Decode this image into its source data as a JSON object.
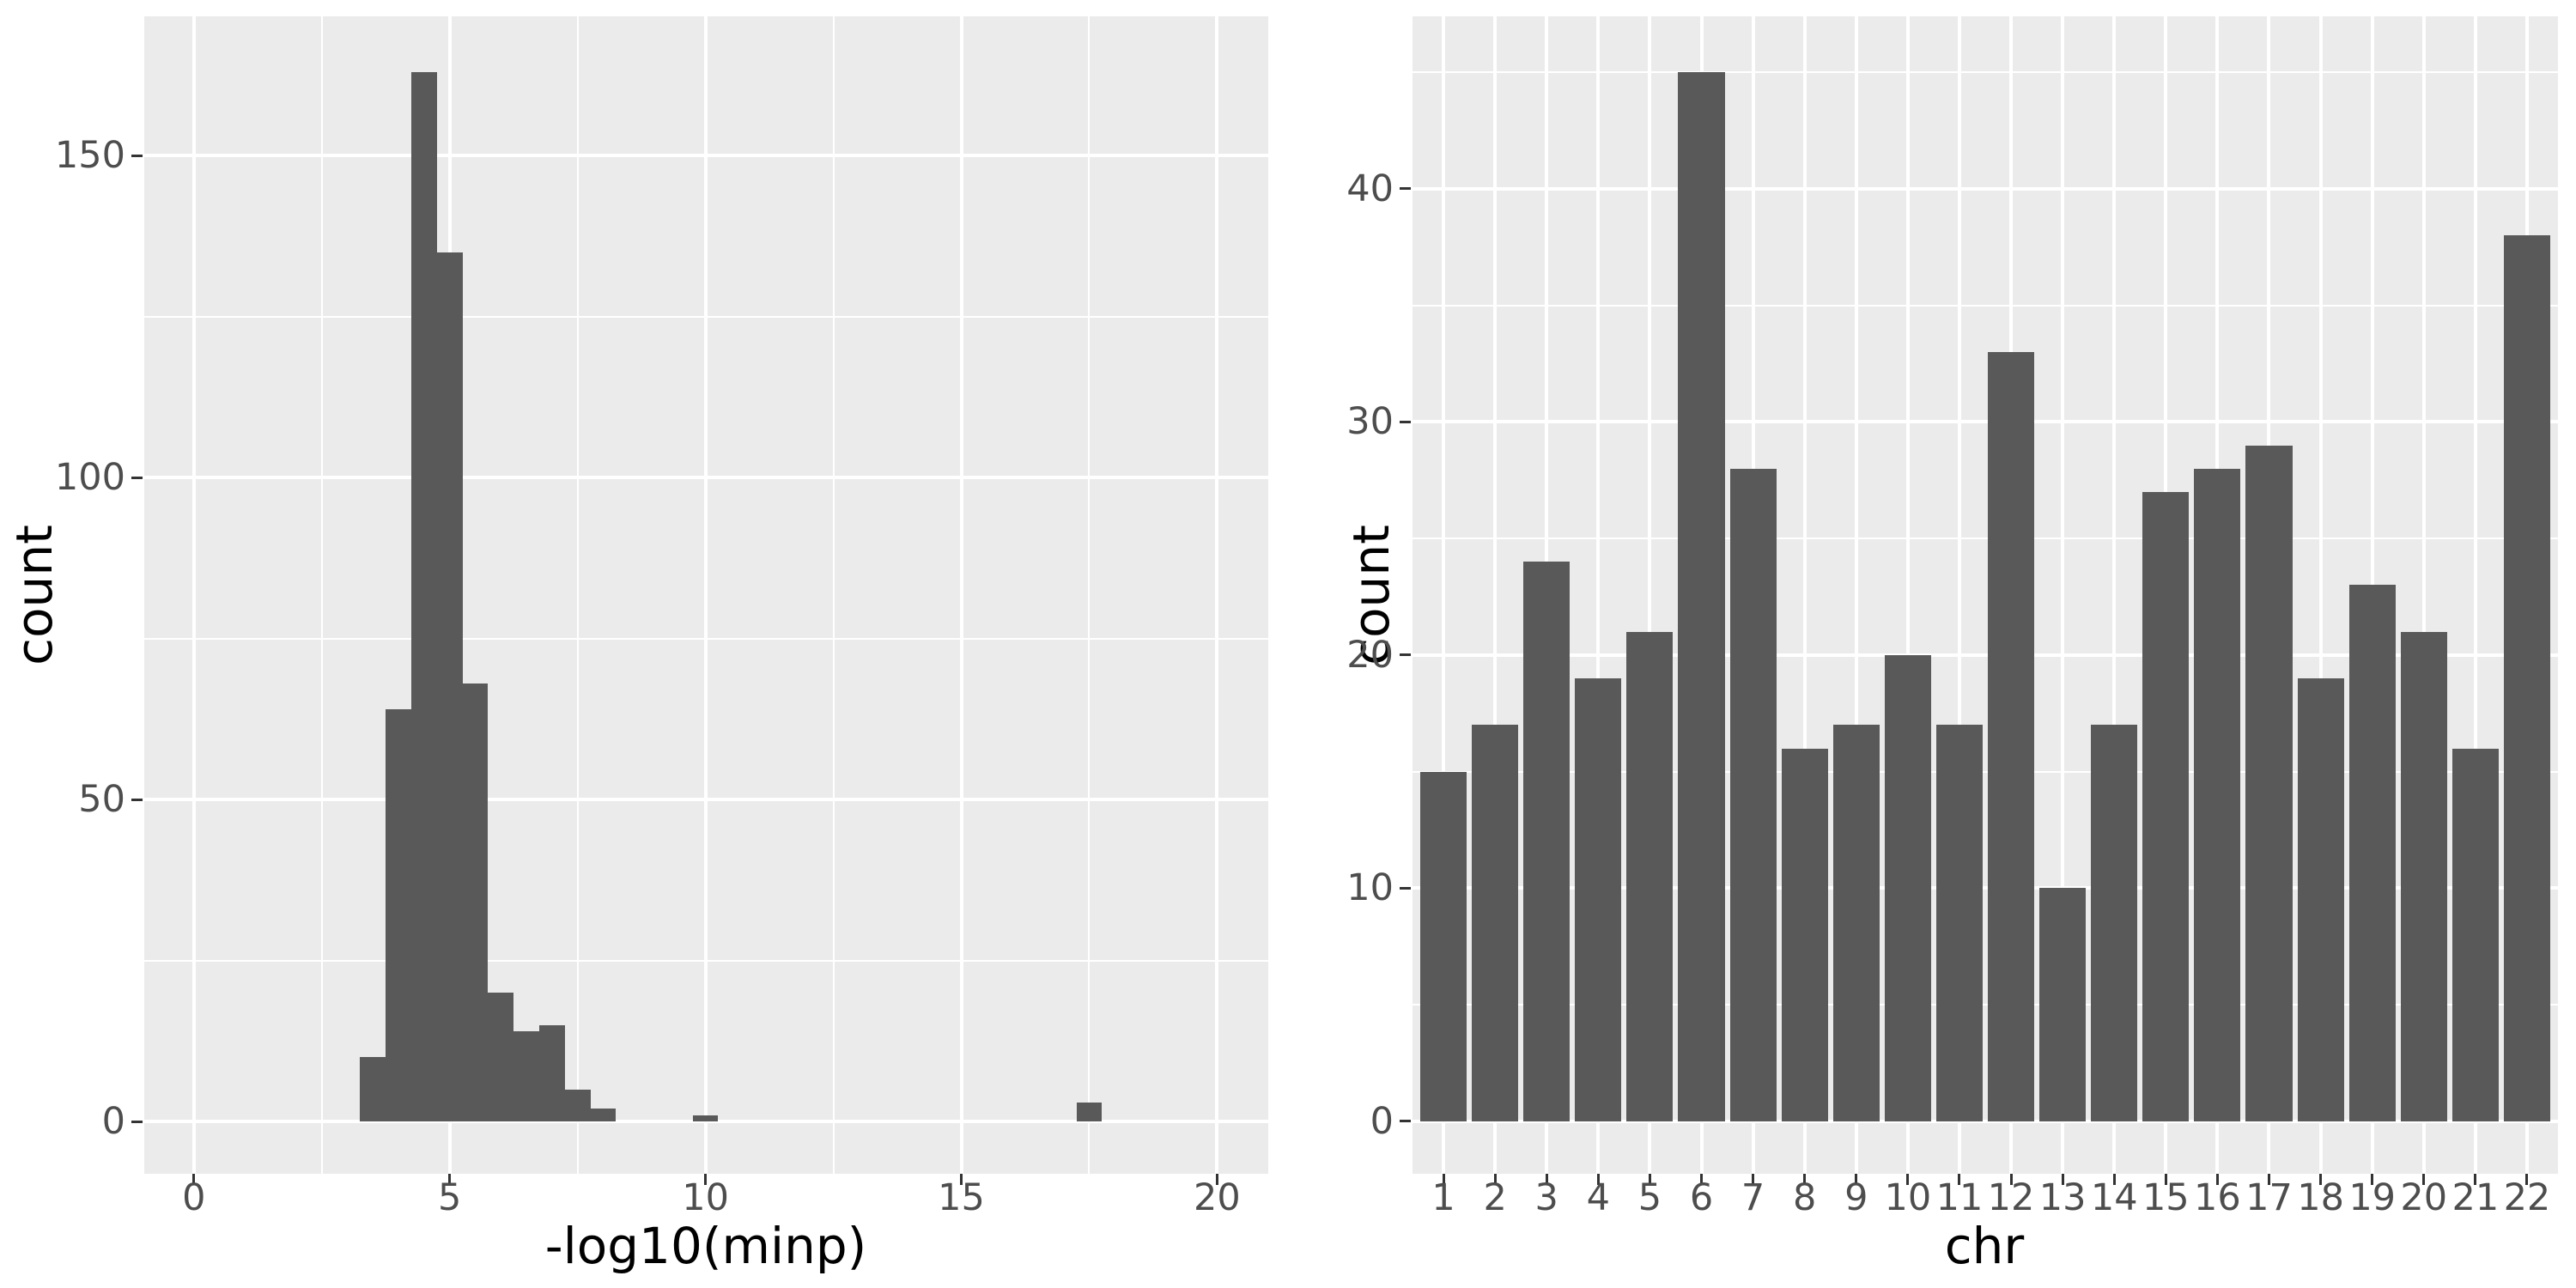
{
  "figure": {
    "kind": "ggplot2-style side-by-side histograms",
    "background": "#FFFFFF"
  },
  "colors": {
    "panel_bg": "#EBEBEB",
    "grid": "#FFFFFF",
    "bar": "#595959",
    "tick_text": "#4D4D4D",
    "tick_mark": "#333333",
    "axis_title": "#000000"
  },
  "chart_data": [
    {
      "type": "bar",
      "subtype": "histogram",
      "title": "",
      "xlabel": "-log10(minp)",
      "ylabel": "count",
      "x_ticks": [
        0,
        5,
        10,
        15,
        20
      ],
      "x_minor_ticks": [
        2.5,
        7.5,
        12.5,
        17.5
      ],
      "y_ticks": [
        0,
        50,
        100,
        150
      ],
      "y_minor_ticks": [
        25,
        75,
        125
      ],
      "xlim": [
        -0.97,
        21.0
      ],
      "ylim": [
        -8.13,
        171.6
      ],
      "grid": true,
      "legend": false,
      "binwidth": 0.5,
      "bins": [
        {
          "x": 3.25,
          "count": 10
        },
        {
          "x": 3.75,
          "count": 64
        },
        {
          "x": 4.25,
          "count": 163
        },
        {
          "x": 4.75,
          "count": 135
        },
        {
          "x": 5.25,
          "count": 68
        },
        {
          "x": 5.75,
          "count": 20
        },
        {
          "x": 6.25,
          "count": 14
        },
        {
          "x": 6.75,
          "count": 15
        },
        {
          "x": 7.25,
          "count": 5
        },
        {
          "x": 7.75,
          "count": 2
        },
        {
          "x": 9.75,
          "count": 1
        },
        {
          "x": 17.25,
          "count": 3
        }
      ],
      "total_n": 500
    },
    {
      "type": "bar",
      "title": "",
      "xlabel": "chr",
      "ylabel": "count",
      "categories": [
        "1",
        "2",
        "3",
        "4",
        "5",
        "6",
        "7",
        "8",
        "9",
        "10",
        "11",
        "12",
        "13",
        "14",
        "15",
        "16",
        "17",
        "18",
        "19",
        "20",
        "21",
        "22"
      ],
      "values": [
        15,
        17,
        24,
        19,
        21,
        45,
        28,
        16,
        17,
        20,
        17,
        33,
        10,
        17,
        27,
        28,
        29,
        19,
        23,
        21,
        16,
        38
      ],
      "y_ticks": [
        0,
        10,
        20,
        30,
        40
      ],
      "y_minor_ticks": [
        5,
        15,
        25,
        35,
        45
      ],
      "ylim": [
        -2.25,
        47.4
      ],
      "xlim_units": [
        0.4,
        22.6
      ],
      "bar_width": 0.9,
      "grid": true,
      "legend": false,
      "total_n": 500
    }
  ]
}
